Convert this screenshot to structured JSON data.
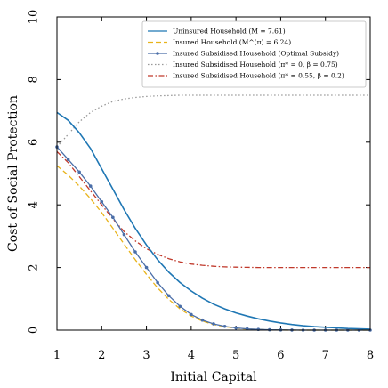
{
  "chart_data": {
    "type": "line",
    "title": "",
    "xlabel": "Initial Capital",
    "ylabel": "Cost of Social Protection",
    "xlim": [
      1,
      8
    ],
    "ylim": [
      0,
      10
    ],
    "xticks": [
      1,
      2,
      3,
      4,
      5,
      6,
      7,
      8
    ],
    "yticks": [
      0,
      2,
      4,
      6,
      8,
      10
    ],
    "grid": false,
    "legend_position": "top-right",
    "x": [
      1.0,
      1.25,
      1.5,
      1.75,
      2.0,
      2.25,
      2.5,
      2.75,
      3.0,
      3.25,
      3.5,
      3.75,
      4.0,
      4.25,
      4.5,
      4.75,
      5.0,
      5.25,
      5.5,
      5.75,
      6.0,
      6.25,
      6.5,
      6.75,
      7.0,
      7.25,
      7.5,
      7.75,
      8.0
    ],
    "series": [
      {
        "name": "Uninsured Household (M = 7.61)",
        "color": "#1f77b4",
        "style": "solid",
        "values": [
          6.95,
          6.7,
          6.3,
          5.8,
          5.15,
          4.5,
          3.85,
          3.25,
          2.72,
          2.25,
          1.85,
          1.52,
          1.25,
          1.02,
          0.83,
          0.68,
          0.55,
          0.45,
          0.36,
          0.29,
          0.23,
          0.18,
          0.14,
          0.11,
          0.09,
          0.07,
          0.05,
          0.04,
          0.03
        ]
      },
      {
        "name": "Insured Household (M^(π) = 6.24)",
        "color": "#e8b31a",
        "style": "dashed",
        "values": [
          5.25,
          4.95,
          4.6,
          4.2,
          3.75,
          3.25,
          2.75,
          2.25,
          1.78,
          1.35,
          0.98,
          0.68,
          0.45,
          0.29,
          0.18,
          0.11,
          0.06,
          0.035,
          0.02,
          0.01,
          0.005,
          0.0,
          0.0,
          0.0,
          0.0,
          0.0,
          0.0,
          0.0,
          0.0
        ]
      },
      {
        "name": "Insured Subsidised Household (Optimal Subsidy)",
        "color": "#4a6ea8",
        "style": "solid-markers",
        "values": [
          5.85,
          5.45,
          5.05,
          4.6,
          4.1,
          3.6,
          3.05,
          2.5,
          2.0,
          1.52,
          1.1,
          0.76,
          0.5,
          0.32,
          0.2,
          0.12,
          0.07,
          0.04,
          0.022,
          0.012,
          0.006,
          0.003,
          0.0,
          0.0,
          0.0,
          0.0,
          0.0,
          0.0,
          0.0
        ]
      },
      {
        "name": "Insured Subsidised Household (π* = 0, β = 0.75)",
        "color": "#999999",
        "style": "dotted",
        "values": [
          5.85,
          6.25,
          6.65,
          6.95,
          7.15,
          7.3,
          7.38,
          7.43,
          7.46,
          7.48,
          7.49,
          7.5,
          7.5,
          7.5,
          7.5,
          7.5,
          7.5,
          7.5,
          7.5,
          7.5,
          7.5,
          7.5,
          7.5,
          7.5,
          7.5,
          7.5,
          7.5,
          7.5,
          7.5
        ]
      },
      {
        "name": "Insured Subsidised Household (π* = 0.55, β = 0.2)",
        "color": "#c0392b",
        "style": "dashdot",
        "values": [
          5.7,
          5.35,
          4.9,
          4.45,
          4.0,
          3.55,
          3.15,
          2.85,
          2.6,
          2.42,
          2.28,
          2.18,
          2.11,
          2.07,
          2.04,
          2.02,
          2.01,
          2.005,
          2.0,
          2.0,
          2.0,
          2.0,
          2.0,
          2.0,
          2.0,
          2.0,
          2.0,
          2.0,
          2.0
        ]
      }
    ]
  }
}
